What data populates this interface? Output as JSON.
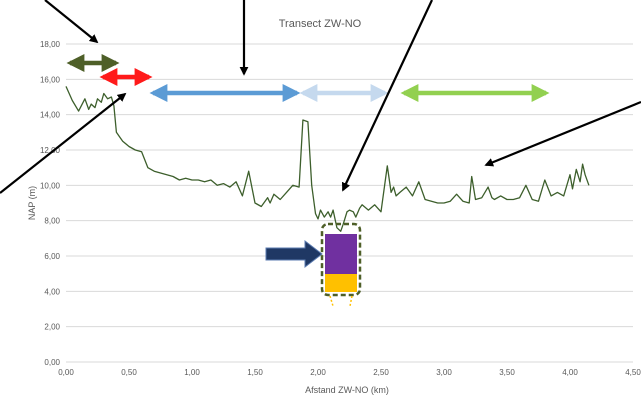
{
  "chart_data": {
    "type": "line",
    "title": "Transect ZW-NO",
    "xlabel": "Afstand ZW-NO (km)",
    "ylabel": "NAP (m)",
    "xlim": [
      0,
      4.5
    ],
    "ylim": [
      0,
      18
    ],
    "x_ticks": [
      "0,00",
      "0,50",
      "1,00",
      "1,50",
      "2,00",
      "2,50",
      "3,00",
      "3,50",
      "4,00",
      "4,50"
    ],
    "y_ticks": [
      "0,00",
      "2,00",
      "4,00",
      "6,00",
      "8,00",
      "10,00",
      "12,00",
      "14,00",
      "16,00",
      "18,00"
    ],
    "grid": "horizontal",
    "series": [
      {
        "color": "#3d5f2c",
        "x": [
          0.0,
          0.05,
          0.1,
          0.15,
          0.18,
          0.2,
          0.23,
          0.25,
          0.28,
          0.3,
          0.33,
          0.36,
          0.38,
          0.4,
          0.42,
          0.45,
          0.5,
          0.55,
          0.6,
          0.65,
          0.7,
          0.75,
          0.8,
          0.85,
          0.9,
          0.95,
          1.0,
          1.05,
          1.1,
          1.15,
          1.2,
          1.25,
          1.3,
          1.35,
          1.4,
          1.45,
          1.5,
          1.55,
          1.6,
          1.62,
          1.65,
          1.7,
          1.75,
          1.8,
          1.85,
          1.88,
          1.92,
          1.95,
          1.98,
          2.0,
          2.02,
          2.05,
          2.08,
          2.1,
          2.12,
          2.15,
          2.18,
          2.2,
          2.23,
          2.25,
          2.28,
          2.3,
          2.33,
          2.35,
          2.4,
          2.45,
          2.5,
          2.55,
          2.58,
          2.6,
          2.62,
          2.65,
          2.7,
          2.75,
          2.8,
          2.85,
          2.9,
          2.95,
          3.0,
          3.05,
          3.1,
          3.15,
          3.2,
          3.22,
          3.25,
          3.3,
          3.35,
          3.38,
          3.4,
          3.45,
          3.5,
          3.55,
          3.6,
          3.65,
          3.7,
          3.75,
          3.8,
          3.85,
          3.9,
          3.95,
          4.0,
          4.02,
          4.05,
          4.08,
          4.1,
          4.12,
          4.15
        ],
        "y": [
          15.6,
          14.8,
          14.2,
          14.9,
          14.3,
          14.6,
          14.4,
          14.9,
          14.7,
          15.2,
          14.9,
          15.0,
          14.5,
          13.0,
          12.8,
          12.5,
          12.2,
          12.0,
          11.9,
          11.0,
          10.8,
          10.7,
          10.6,
          10.5,
          10.3,
          10.4,
          10.3,
          10.3,
          10.2,
          10.3,
          10.0,
          10.1,
          9.9,
          10.2,
          9.4,
          10.8,
          9.0,
          8.8,
          9.3,
          9.0,
          9.5,
          9.2,
          9.6,
          10.0,
          9.9,
          13.7,
          13.6,
          10.0,
          8.4,
          8.1,
          8.6,
          8.2,
          8.5,
          8.2,
          8.6,
          7.6,
          7.4,
          7.8,
          8.5,
          8.6,
          8.5,
          8.2,
          8.7,
          8.9,
          8.6,
          8.9,
          8.5,
          11.1,
          9.6,
          9.9,
          9.4,
          9.6,
          9.9,
          9.4,
          10.2,
          9.2,
          9.1,
          9.0,
          9.0,
          9.1,
          9.5,
          9.1,
          9.0,
          10.5,
          9.2,
          9.3,
          9.9,
          9.3,
          9.2,
          9.4,
          9.2,
          9.2,
          9.3,
          10.0,
          9.2,
          9.1,
          10.3,
          9.4,
          9.6,
          9.4,
          10.6,
          9.8,
          10.9,
          10.2,
          11.2,
          10.6,
          10.0
        ]
      }
    ]
  },
  "colors": {
    "line": "#3d5f2c",
    "grid": "#d9d9d9",
    "arrow_dark_green": "#4e5f28",
    "arrow_red": "#ff1a1a",
    "arrow_blue": "#5b9bd5",
    "arrow_light_blue": "#c5d9ee",
    "arrow_light_green": "#92d050",
    "arrow_navy": "#1f3864",
    "box_purple": "#7030a0",
    "box_gold": "#ffc000",
    "box_outline": "#4e5f28"
  }
}
